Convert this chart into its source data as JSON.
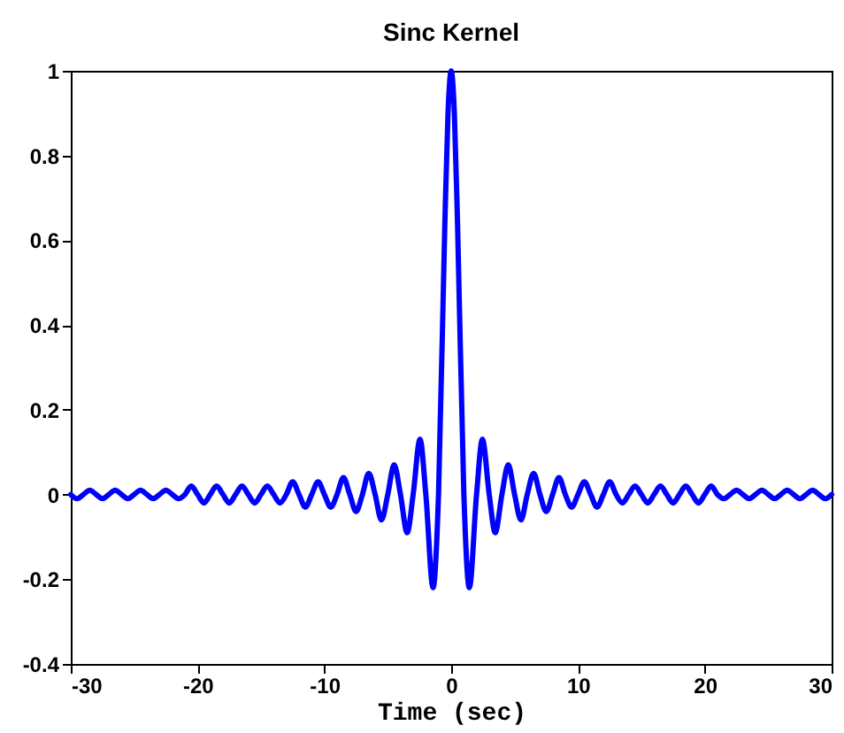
{
  "chart_data": {
    "type": "line",
    "title": "Sinc Kernel",
    "xlabel": "Time (sec)",
    "x": [
      -30,
      -29.5,
      -29,
      -28.5,
      -28,
      -27.5,
      -27,
      -26.5,
      -26,
      -25.5,
      -25,
      -24.5,
      -24,
      -23.5,
      -23,
      -22.5,
      -22,
      -21.5,
      -21,
      -20.5,
      -20,
      -19.5,
      -19,
      -18.5,
      -18,
      -17.5,
      -17,
      -16.5,
      -16,
      -15.5,
      -15,
      -14.5,
      -14,
      -13.5,
      -13,
      -12.5,
      -12,
      -11.5,
      -11,
      -10.5,
      -10,
      -9.5,
      -9,
      -8.5,
      -8,
      -7.5,
      -7,
      -6.5,
      -6,
      -5.5,
      -5,
      -4.5,
      -4,
      -3.47,
      -3,
      -2.46,
      -2,
      -1.43,
      -1,
      -0.5,
      -0.25,
      0,
      0.25,
      0.5,
      1,
      1.43,
      2,
      2.46,
      3,
      3.47,
      4,
      4.5,
      5,
      5.5,
      6,
      6.5,
      7,
      7.5,
      8,
      8.5,
      9,
      9.5,
      10,
      10.5,
      11,
      11.5,
      12,
      12.5,
      13,
      13.5,
      14,
      14.5,
      15,
      15.5,
      16,
      16.5,
      17,
      17.5,
      18,
      18.5,
      19,
      19.5,
      20,
      20.5,
      21,
      21.5,
      22,
      22.5,
      23,
      23.5,
      24,
      24.5,
      25,
      25.5,
      26,
      26.5,
      27,
      27.5,
      28,
      28.5,
      29,
      29.5,
      30
    ],
    "series": [
      {
        "color": "#0000ff",
        "values": [
          0,
          -0.01,
          0,
          0.01,
          0,
          -0.01,
          0,
          0.01,
          0,
          -0.01,
          0,
          0.01,
          0,
          -0.01,
          0,
          0.01,
          0,
          -0.01,
          0,
          0.02,
          0,
          -0.02,
          0,
          0.02,
          0,
          -0.02,
          0,
          0.02,
          0,
          -0.02,
          0,
          0.02,
          0,
          -0.02,
          0,
          0.03,
          0,
          -0.03,
          0,
          0.03,
          0,
          -0.03,
          0,
          0.04,
          0,
          -0.04,
          0,
          0.05,
          0,
          -0.06,
          0,
          0.07,
          0,
          -0.09,
          0,
          0.13,
          0,
          -0.22,
          0,
          0.64,
          0.9,
          1,
          0.9,
          0.64,
          0,
          -0.22,
          0,
          0.13,
          0,
          -0.09,
          0,
          0.07,
          0,
          -0.06,
          0,
          0.05,
          0,
          -0.04,
          0,
          0.04,
          0,
          -0.03,
          0,
          0.03,
          0,
          -0.03,
          0,
          0.03,
          0,
          -0.02,
          0,
          0.02,
          0,
          -0.02,
          0,
          0.02,
          0,
          -0.02,
          0,
          0.02,
          0,
          -0.02,
          0,
          0.02,
          0,
          -0.01,
          0,
          0.01,
          0,
          -0.01,
          0,
          0.01,
          0,
          -0.01,
          0,
          0.01,
          0,
          -0.01,
          0,
          0.01,
          0,
          -0.01,
          0
        ]
      }
    ],
    "xlim": [
      -30,
      30
    ],
    "xticks": [
      -30,
      -20,
      -10,
      0,
      10,
      20,
      30
    ],
    "ylim": [
      -0.4,
      1
    ],
    "yticks": [
      -0.4,
      -0.2,
      0,
      0.2,
      0.4,
      0.6,
      0.8,
      1
    ],
    "grid": false,
    "marker": "none",
    "line_style": "solid"
  }
}
